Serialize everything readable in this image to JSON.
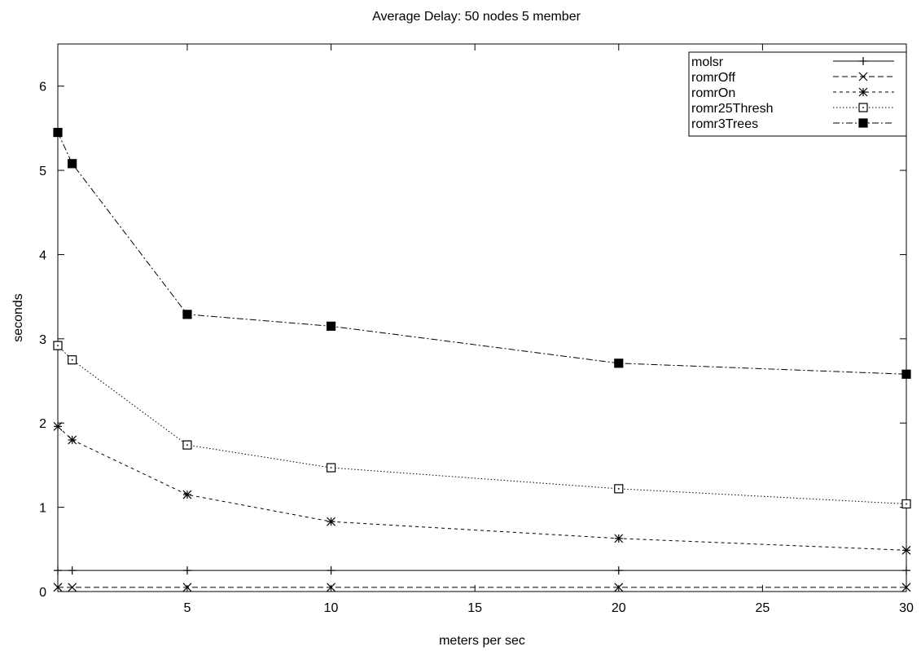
{
  "chart_data": {
    "type": "line",
    "title": "Average Delay: 50 nodes 5 member",
    "xlabel": "meters per sec",
    "ylabel": "seconds",
    "xlim": [
      0.5,
      30
    ],
    "ylim": [
      0,
      6.5
    ],
    "xticks": [
      5,
      10,
      15,
      20,
      25,
      30
    ],
    "yticks": [
      0,
      1,
      2,
      3,
      4,
      5,
      6
    ],
    "grid": false,
    "legend_position": "top-right",
    "series": [
      {
        "name": "molsr",
        "marker": "plus",
        "dash": "solid",
        "x": [
          0.5,
          1,
          5,
          10,
          20,
          30
        ],
        "y": [
          0.25,
          0.25,
          0.25,
          0.25,
          0.25,
          0.25
        ]
      },
      {
        "name": "romrOff",
        "marker": "cross",
        "dash": "dashed",
        "x": [
          0.5,
          1,
          5,
          10,
          20,
          30
        ],
        "y": [
          0.05,
          0.05,
          0.05,
          0.05,
          0.05,
          0.05
        ]
      },
      {
        "name": "romrOn",
        "marker": "star",
        "dash": "short-dash",
        "x": [
          0.5,
          1,
          5,
          10,
          20,
          30
        ],
        "y": [
          1.96,
          1.8,
          1.15,
          0.83,
          0.63,
          0.49
        ]
      },
      {
        "name": "romr25Thresh",
        "marker": "box-open",
        "dash": "dotted",
        "x": [
          0.5,
          1,
          5,
          10,
          20,
          30
        ],
        "y": [
          2.92,
          2.75,
          1.74,
          1.47,
          1.22,
          1.04
        ]
      },
      {
        "name": "romr3Trees",
        "marker": "box-filled",
        "dash": "dash-dot",
        "x": [
          0.5,
          1,
          5,
          10,
          20,
          30
        ],
        "y": [
          5.45,
          5.08,
          3.29,
          3.15,
          2.71,
          2.58
        ]
      }
    ]
  }
}
